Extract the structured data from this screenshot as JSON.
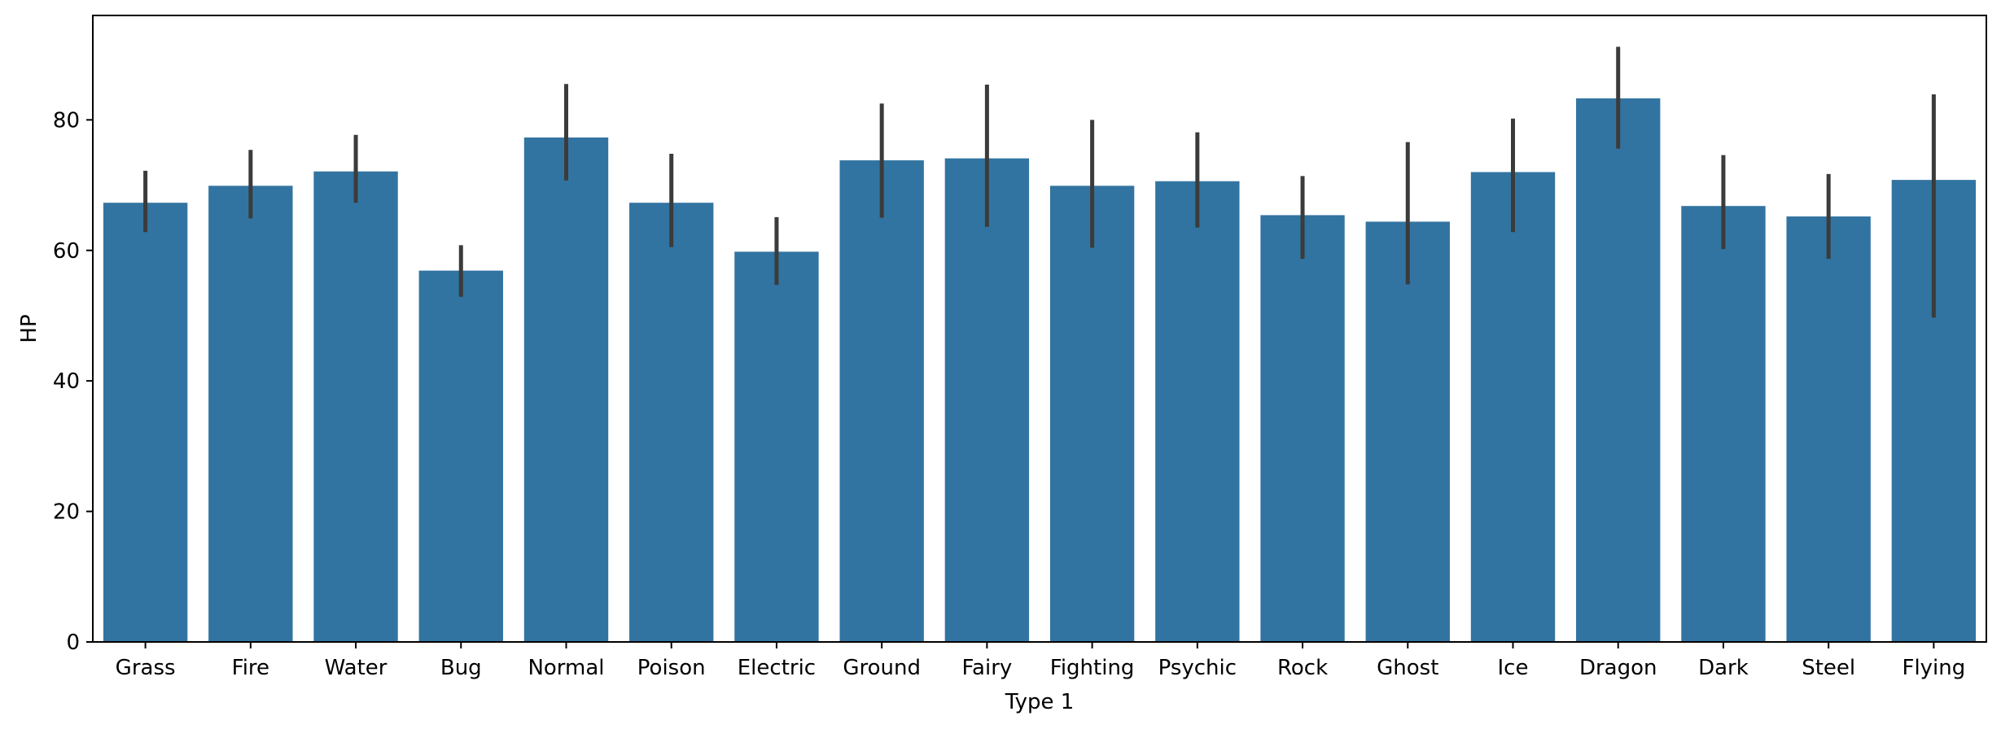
{
  "chart_data": {
    "type": "bar",
    "xlabel": "Type 1",
    "ylabel": "HP",
    "ylim": [
      0,
      96
    ],
    "yticks": [
      0,
      20,
      40,
      60,
      80
    ],
    "grid": false,
    "bar_color": "#3274a1",
    "errorbar_color": "#3b3b3b",
    "categories": [
      "Grass",
      "Fire",
      "Water",
      "Bug",
      "Normal",
      "Poison",
      "Electric",
      "Ground",
      "Fairy",
      "Fighting",
      "Psychic",
      "Rock",
      "Ghost",
      "Ice",
      "Dragon",
      "Dark",
      "Steel",
      "Flying"
    ],
    "values": [
      67.3,
      69.9,
      72.1,
      56.9,
      77.3,
      67.3,
      59.8,
      73.8,
      74.1,
      69.9,
      70.6,
      65.4,
      64.4,
      72.0,
      83.3,
      66.8,
      65.2,
      70.8
    ],
    "ci_low": [
      62.8,
      64.9,
      67.3,
      52.9,
      70.7,
      60.5,
      54.7,
      65.0,
      63.6,
      60.4,
      63.5,
      58.7,
      54.8,
      62.8,
      75.6,
      60.2,
      58.7,
      49.7
    ],
    "ci_high": [
      72.2,
      75.4,
      77.7,
      60.8,
      85.5,
      74.8,
      65.1,
      82.5,
      85.4,
      80.0,
      78.1,
      71.4,
      76.6,
      80.2,
      91.2,
      74.6,
      71.7,
      83.9
    ]
  }
}
